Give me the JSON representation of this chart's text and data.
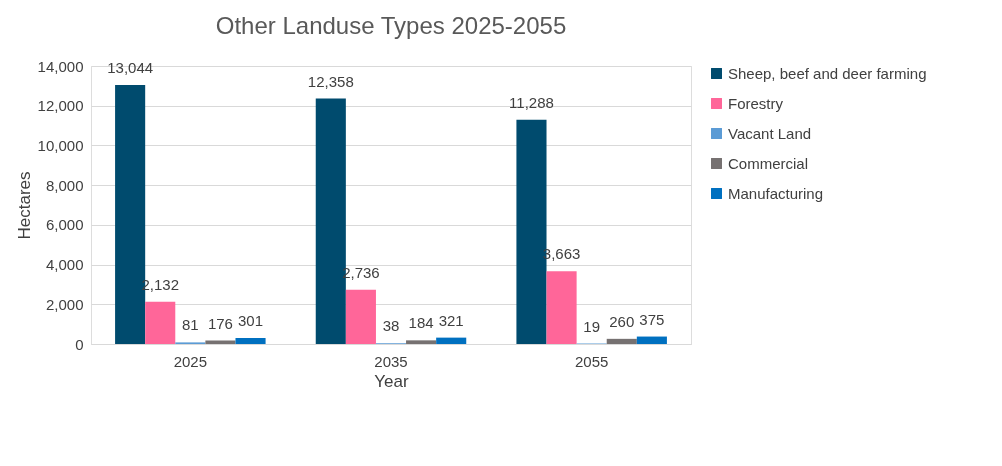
{
  "chart_data": {
    "type": "bar",
    "title": "Other Landuse Types 2025-2055",
    "xlabel": "Year",
    "ylabel": "Hectares",
    "categories": [
      "2025",
      "2035",
      "2055"
    ],
    "series": [
      {
        "name": "Sheep, beef and deer farming",
        "color": "#004b6e",
        "values": [
          13044,
          12358,
          11288
        ],
        "value_labels": [
          "13,044",
          "12,358",
          "11,288"
        ]
      },
      {
        "name": "Forestry",
        "color": "#ff6699",
        "values": [
          2132,
          2736,
          3663
        ],
        "value_labels": [
          "2,132",
          "2,736",
          "3,663"
        ]
      },
      {
        "name": "Vacant Land",
        "color": "#5b9bd5",
        "values": [
          81,
          38,
          19
        ],
        "value_labels": [
          "81",
          "38",
          "19"
        ]
      },
      {
        "name": "Commercial",
        "color": "#767171",
        "values": [
          176,
          184,
          260
        ],
        "value_labels": [
          "176",
          "184",
          "260"
        ]
      },
      {
        "name": "Manufacturing",
        "color": "#0070c0",
        "values": [
          301,
          321,
          375
        ],
        "value_labels": [
          "301",
          "321",
          "375"
        ]
      }
    ],
    "ylim": [
      0,
      14000
    ],
    "yticks": [
      0,
      {
        "value": 2000,
        "label": "2,000"
      },
      {
        "value": 4000,
        "label": "4,000"
      },
      {
        "value": 6000,
        "label": "6,000"
      },
      {
        "value": 8000,
        "label": "8,000"
      },
      {
        "value": 10000,
        "label": "10,000"
      },
      {
        "value": 12000,
        "label": "12,000"
      },
      {
        "value": 14000,
        "label": "14,000"
      }
    ],
    "grid": "y",
    "legend": "right"
  }
}
